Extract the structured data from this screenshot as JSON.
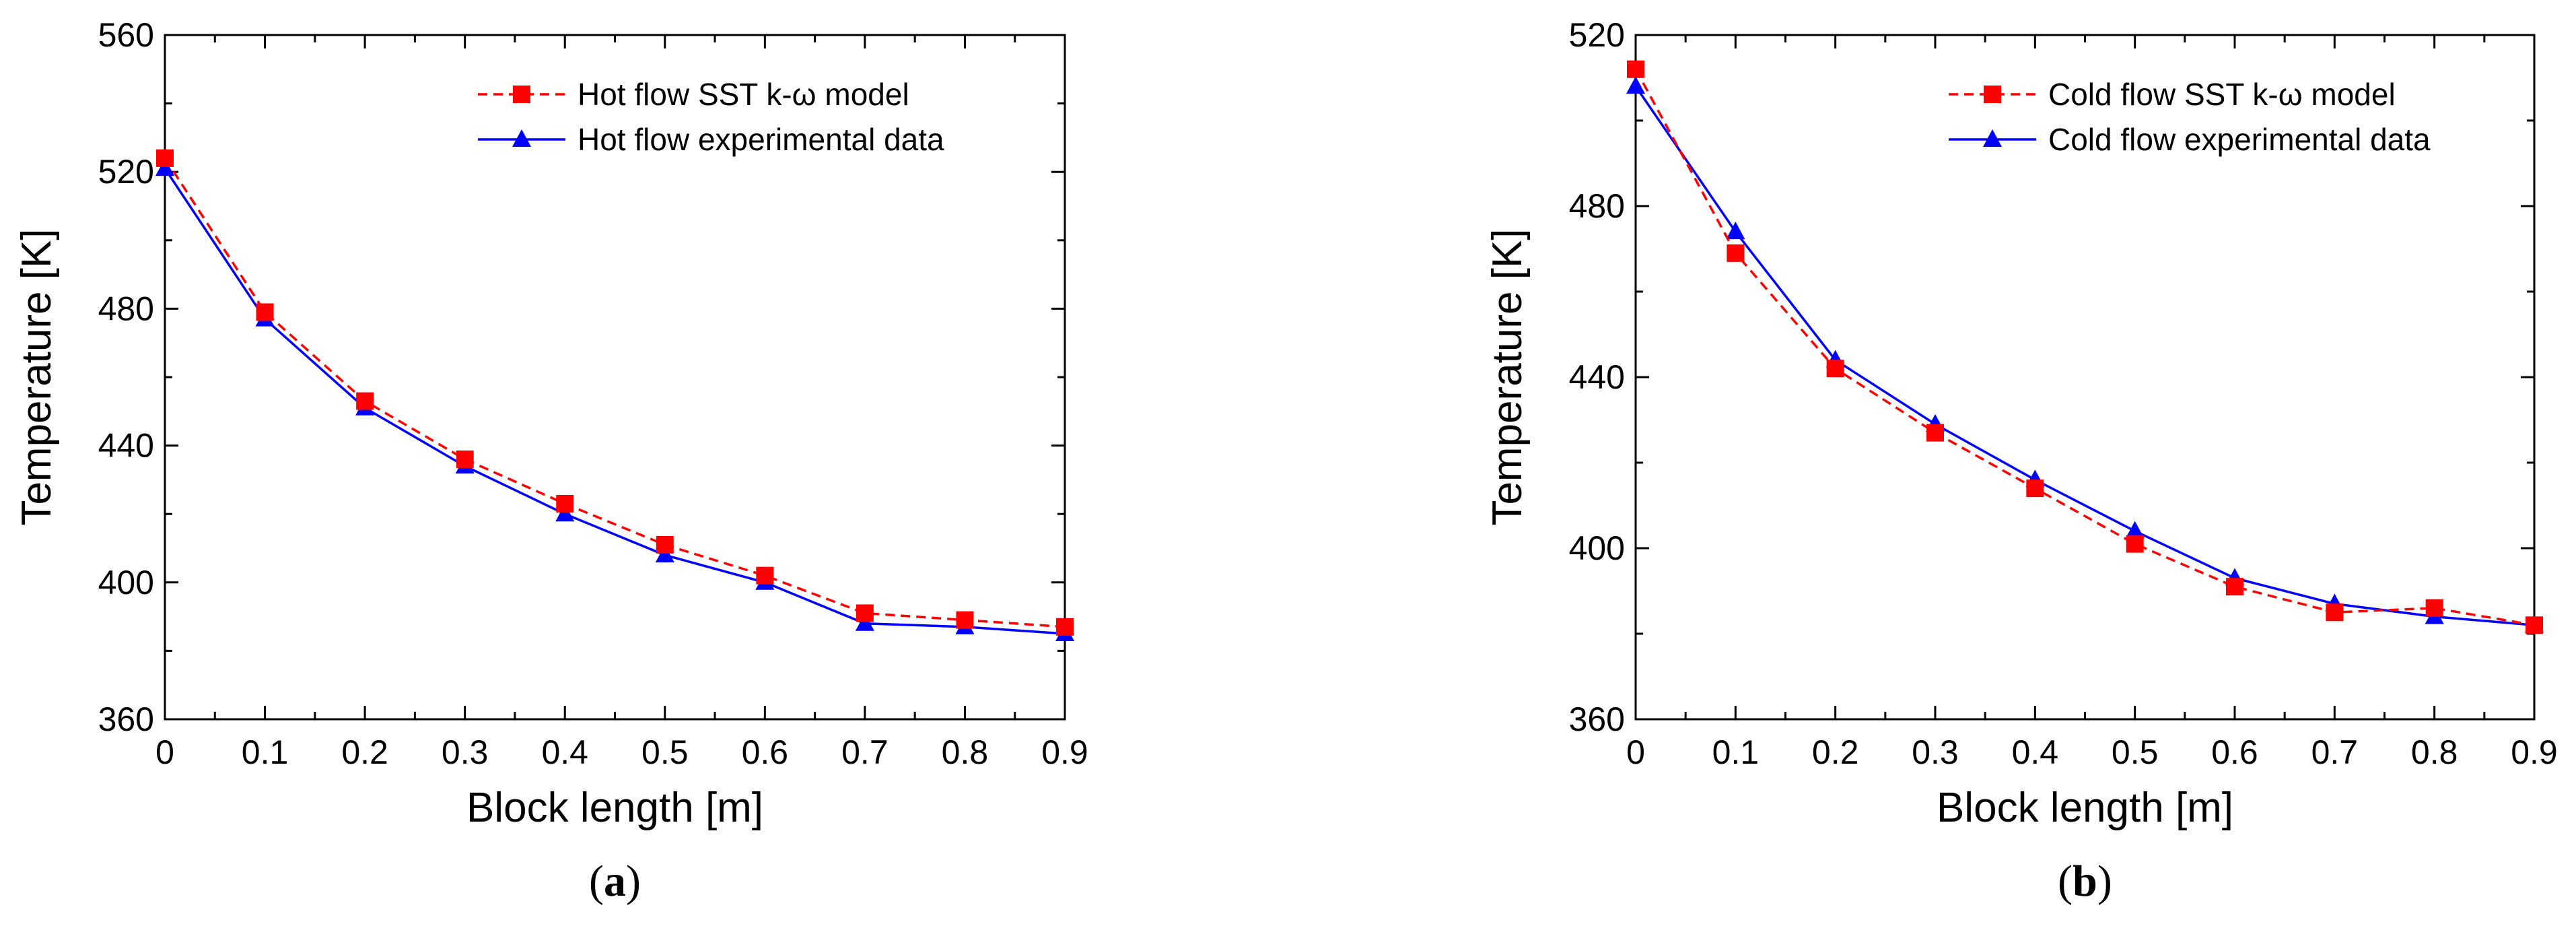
{
  "chart_data": [
    {
      "type": "line",
      "panel_label": "a",
      "xlabel": "Block length [m]",
      "ylabel": "Temperature [K]",
      "xlim": [
        0,
        0.9
      ],
      "ylim": [
        360,
        560
      ],
      "x_ticks": [
        0,
        0.1,
        0.2,
        0.3,
        0.4,
        0.5,
        0.6,
        0.7,
        0.8,
        0.9
      ],
      "x_tick_labels": [
        "0",
        "0.1",
        "0.2",
        "0.3",
        "0.4",
        "0.5",
        "0.6",
        "0.7",
        "0.8",
        "0.9"
      ],
      "y_ticks": [
        360,
        400,
        440,
        480,
        520,
        560
      ],
      "y_tick_labels": [
        "360",
        "400",
        "440",
        "480",
        "520",
        "560"
      ],
      "legend_position": "top-right",
      "x": [
        0,
        0.1,
        0.2,
        0.3,
        0.4,
        0.5,
        0.6,
        0.7,
        0.8,
        0.9
      ],
      "series": [
        {
          "name": "Hot flow SST k-ω model",
          "color": "#ff0000",
          "marker": "square",
          "line_style": "dashed",
          "values": [
            524,
            479,
            453,
            436,
            423,
            411,
            402,
            391,
            389,
            387
          ]
        },
        {
          "name": "Hot flow experimental data",
          "color": "#0000ff",
          "marker": "triangle",
          "line_style": "solid",
          "values": [
            521,
            477,
            451,
            434,
            420,
            408,
            400,
            388,
            387,
            385
          ]
        }
      ]
    },
    {
      "type": "line",
      "panel_label": "b",
      "xlabel": "Block length [m]",
      "ylabel": "Temperature [K]",
      "xlim": [
        0,
        0.9
      ],
      "ylim": [
        360,
        520
      ],
      "x_ticks": [
        0,
        0.1,
        0.2,
        0.3,
        0.4,
        0.5,
        0.6,
        0.7,
        0.8,
        0.9
      ],
      "x_tick_labels": [
        "0",
        "0.1",
        "0.2",
        "0.3",
        "0.4",
        "0.5",
        "0.6",
        "0.7",
        "0.8",
        "0.9"
      ],
      "y_ticks": [
        360,
        400,
        440,
        480,
        520
      ],
      "y_tick_labels": [
        "360",
        "400",
        "440",
        "480",
        "520"
      ],
      "legend_position": "top-right",
      "x": [
        0,
        0.1,
        0.2,
        0.3,
        0.4,
        0.5,
        0.6,
        0.7,
        0.8,
        0.9
      ],
      "series": [
        {
          "name": "Cold flow SST k-ω model",
          "color": "#ff0000",
          "marker": "square",
          "line_style": "dashed",
          "values": [
            512,
            469,
            442,
            427,
            414,
            401,
            391,
            385,
            386,
            382
          ]
        },
        {
          "name": "Cold flow experimental data",
          "color": "#0000ff",
          "marker": "triangle",
          "line_style": "solid",
          "values": [
            508,
            474,
            444,
            429,
            416,
            404,
            393,
            387,
            384,
            382
          ]
        }
      ]
    }
  ]
}
